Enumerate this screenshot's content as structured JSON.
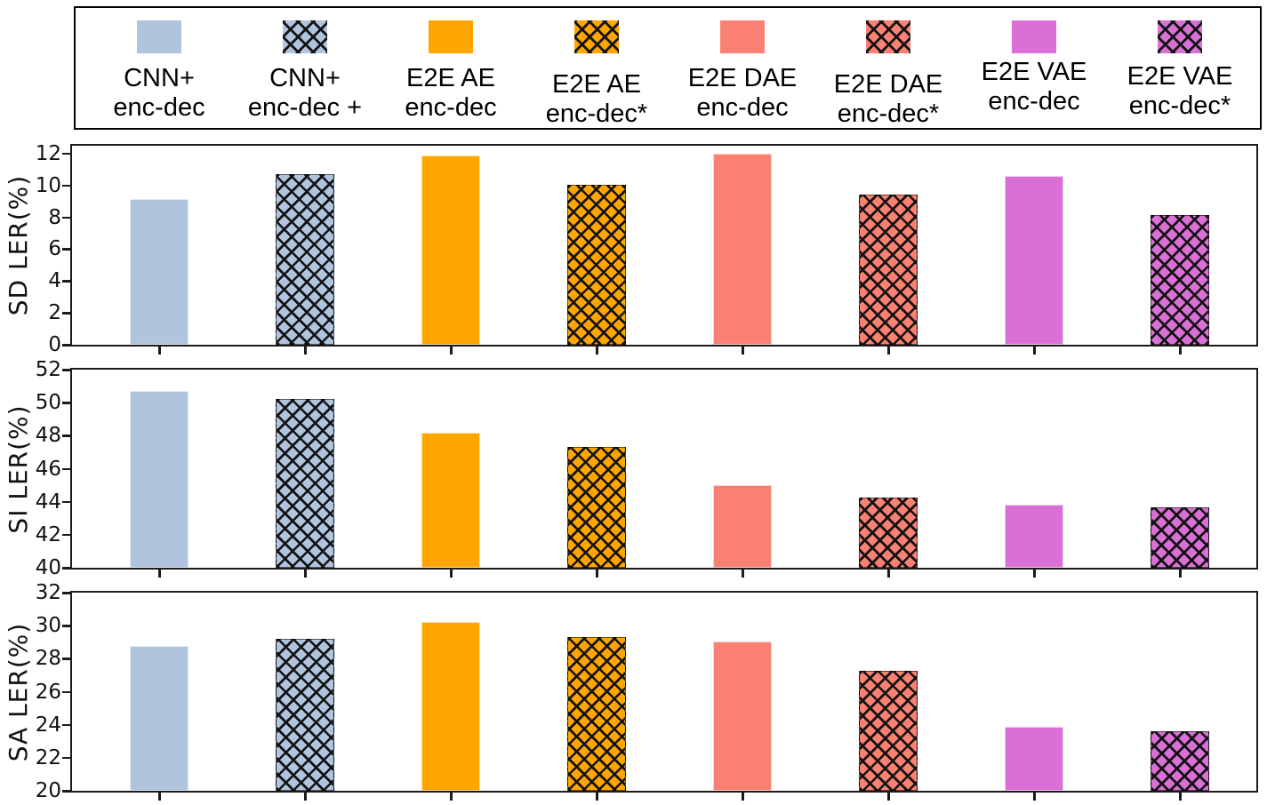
{
  "legend": {
    "entries": [
      {
        "line1": "CNN+",
        "line2": "enc-dec",
        "color": "#b0c4de",
        "hatched": false
      },
      {
        "line1": "CNN+",
        "line2": "enc-dec +",
        "color": "#b0c4de",
        "hatched": true
      },
      {
        "line1": "E2E AE",
        "line2": "enc-dec",
        "color": "#ffa500",
        "hatched": false
      },
      {
        "line1": "E2E AE",
        "line2": "enc-dec*",
        "color": "#ffa500",
        "hatched": true
      },
      {
        "line1": "E2E DAE",
        "line2": "enc-dec",
        "color": "#fa8072",
        "hatched": false
      },
      {
        "line1": "E2E DAE",
        "line2": "enc-dec*",
        "color": "#fa8072",
        "hatched": true
      },
      {
        "line1": "E2E VAE",
        "line2": "enc-dec",
        "color": "#da70d6",
        "hatched": false
      },
      {
        "line1": "E2E VAE",
        "line2": "enc-dec*",
        "color": "#da70d6",
        "hatched": true
      }
    ]
  },
  "series_colors": {
    "lightsteelblue": "#b0c4de",
    "orange": "#ffa500",
    "salmon": "#fa8072",
    "orchid": "#da70d6"
  },
  "chart_data": [
    {
      "type": "bar",
      "ylabel": "SD LER(%)",
      "ylim": [
        0,
        12.5
      ],
      "yticks": [
        0,
        2,
        4,
        6,
        8,
        10,
        12
      ],
      "grid": false,
      "legend_position": "top",
      "categories": [
        "CNN+ enc-dec",
        "CNN+ enc-dec +",
        "E2E AE enc-dec",
        "E2E AE enc-dec*",
        "E2E DAE enc-dec",
        "E2E DAE enc-dec*",
        "E2E VAE enc-dec",
        "E2E VAE enc-dec*"
      ],
      "values": [
        9.15,
        10.7,
        11.9,
        10.05,
        12.0,
        9.45,
        10.6,
        8.15
      ]
    },
    {
      "type": "bar",
      "ylabel": "SI LER(%)",
      "ylim": [
        40,
        52
      ],
      "yticks": [
        40,
        42,
        44,
        46,
        48,
        50,
        52
      ],
      "grid": false,
      "legend_position": "top",
      "categories": [
        "CNN+ enc-dec",
        "CNN+ enc-dec +",
        "E2E AE enc-dec",
        "E2E AE enc-dec*",
        "E2E DAE enc-dec",
        "E2E DAE enc-dec*",
        "E2E VAE enc-dec",
        "E2E VAE enc-dec*"
      ],
      "values": [
        50.7,
        50.2,
        48.2,
        47.3,
        45.0,
        44.25,
        43.8,
        43.65
      ]
    },
    {
      "type": "bar",
      "ylabel": "SA LER(%)",
      "ylim": [
        20,
        32
      ],
      "yticks": [
        20,
        22,
        24,
        26,
        28,
        30,
        32
      ],
      "grid": false,
      "legend_position": "top",
      "categories": [
        "CNN+ enc-dec",
        "CNN+ enc-dec +",
        "E2E AE enc-dec",
        "E2E AE enc-dec*",
        "E2E DAE enc-dec",
        "E2E DAE enc-dec*",
        "E2E VAE enc-dec",
        "E2E VAE enc-dec*"
      ],
      "values": [
        28.75,
        29.2,
        30.25,
        29.3,
        29.05,
        27.25,
        23.85,
        23.6
      ]
    }
  ]
}
